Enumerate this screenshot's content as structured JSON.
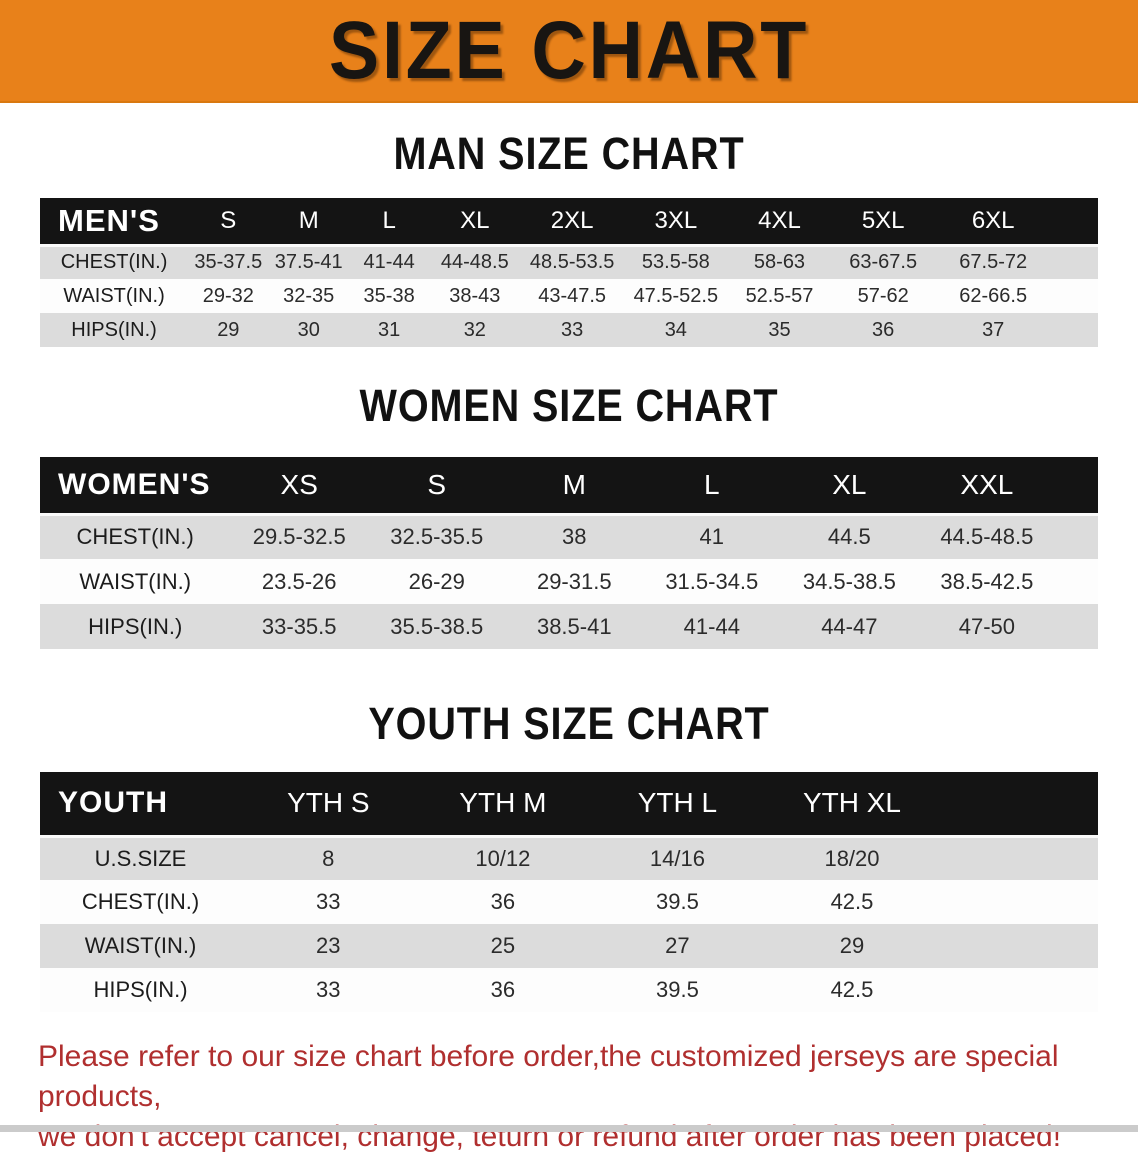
{
  "banner": {
    "title": "SIZE CHART"
  },
  "sections": [
    {
      "heading": "MAN SIZE CHART",
      "table": {
        "header_label": "MEN'S",
        "columns": [
          "S",
          "M",
          "L",
          "XL",
          "2XL",
          "3XL",
          "4XL",
          "5XL",
          "6XL"
        ],
        "rows": [
          {
            "label": "CHEST(IN.)",
            "values": [
              "35-37.5",
              "37.5-41",
              "41-44",
              "44-48.5",
              "48.5-53.5",
              "53.5-58",
              "58-63",
              "63-67.5",
              "67.5-72"
            ]
          },
          {
            "label": "WAIST(IN.)",
            "values": [
              "29-32",
              "32-35",
              "35-38",
              "38-43",
              "43-47.5",
              "47.5-52.5",
              "52.5-57",
              "57-62",
              "62-66.5"
            ]
          },
          {
            "label": "HIPS(IN.)",
            "values": [
              "29",
              "30",
              "31",
              "32",
              "33",
              "34",
              "35",
              "36",
              "37"
            ]
          }
        ]
      }
    },
    {
      "heading": "WOMEN SIZE CHART",
      "table": {
        "header_label": "WOMEN'S",
        "columns": [
          "XS",
          "S",
          "M",
          "L",
          "XL",
          "XXL"
        ],
        "rows": [
          {
            "label": "CHEST(IN.)",
            "values": [
              "29.5-32.5",
              "32.5-35.5",
              "38",
              "41",
              "44.5",
              "44.5-48.5"
            ]
          },
          {
            "label": "WAIST(IN.)",
            "values": [
              "23.5-26",
              "26-29",
              "29-31.5",
              "31.5-34.5",
              "34.5-38.5",
              "38.5-42.5"
            ]
          },
          {
            "label": "HIPS(IN.)",
            "values": [
              "33-35.5",
              "35.5-38.5",
              "38.5-41",
              "41-44",
              "44-47",
              "47-50"
            ]
          }
        ]
      }
    },
    {
      "heading": "YOUTH SIZE CHART",
      "table": {
        "header_label": "YOUTH",
        "columns": [
          "YTH S",
          "YTH M",
          "YTH L",
          "YTH XL"
        ],
        "rows": [
          {
            "label": "U.S.SIZE",
            "values": [
              "8",
              "10/12",
              "14/16",
              "18/20"
            ]
          },
          {
            "label": "CHEST(IN.)",
            "values": [
              "33",
              "36",
              "39.5",
              "42.5"
            ]
          },
          {
            "label": "WAIST(IN.)",
            "values": [
              "23",
              "25",
              "27",
              "29"
            ]
          },
          {
            "label": "HIPS(IN.)",
            "values": [
              "33",
              "36",
              "39.5",
              "42.5"
            ]
          }
        ]
      }
    }
  ],
  "footnote": {
    "line1": "Please refer to our size chart before order,the customized jerseys are special products,",
    "line2": "we don't accept cancel, change, teturn or refund after order has been placed!"
  },
  "colors": {
    "banner_orange": "#E8811A",
    "header_bar_black": "#141414",
    "stripe_gray": "#dcdcdc",
    "footnote_red": "#B02F2F"
  }
}
